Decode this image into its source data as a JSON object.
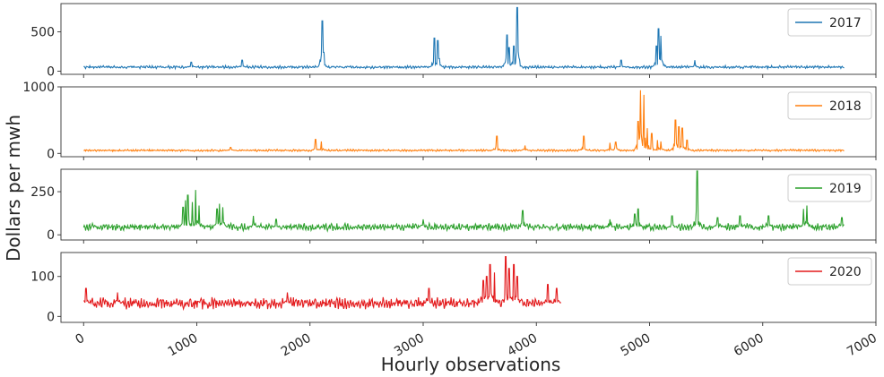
{
  "figure": {
    "xlabel": "Hourly observations",
    "ylabel": "Dollars per mwh"
  },
  "chart_data": [
    {
      "type": "line",
      "series": [
        {
          "name": "2017",
          "color": "#1f77b4",
          "n": 6720,
          "base": 52,
          "noise": 14,
          "peaks": [
            [
              950,
              115
            ],
            [
              1400,
              140
            ],
            [
              2110,
              640
            ],
            [
              2120,
              240
            ],
            [
              3100,
              420
            ],
            [
              3130,
              390
            ],
            [
              3140,
              160
            ],
            [
              3740,
              460
            ],
            [
              3760,
              300
            ],
            [
              3800,
              320
            ],
            [
              3830,
              810
            ],
            [
              3840,
              250
            ],
            [
              4750,
              140
            ],
            [
              5060,
              320
            ],
            [
              5080,
              540
            ],
            [
              5100,
              450
            ],
            [
              5400,
              140
            ]
          ]
        }
      ],
      "legend": "2017",
      "x_ticks": [
        0,
        1000,
        2000,
        3000,
        4000,
        5000,
        6000,
        7000
      ],
      "y_ticks": [
        0,
        500
      ],
      "ylim": [
        -40,
        860
      ],
      "xlim": [
        -200,
        7000
      ],
      "legend_position": "top-right"
    },
    {
      "type": "line",
      "series": [
        {
          "name": "2018",
          "color": "#ff7f0e",
          "n": 6720,
          "base": 45,
          "noise": 12,
          "peaks": [
            [
              1300,
              90
            ],
            [
              2050,
              210
            ],
            [
              2100,
              180
            ],
            [
              3650,
              260
            ],
            [
              3900,
              120
            ],
            [
              4420,
              260
            ],
            [
              4650,
              160
            ],
            [
              4700,
              170
            ],
            [
              4900,
              480
            ],
            [
              4920,
              950
            ],
            [
              4950,
              880
            ],
            [
              4980,
              380
            ],
            [
              5020,
              300
            ],
            [
              5070,
              200
            ],
            [
              5100,
              180
            ],
            [
              5230,
              500
            ],
            [
              5260,
              400
            ],
            [
              5290,
              380
            ],
            [
              5330,
              200
            ]
          ]
        }
      ],
      "legend": "2018",
      "x_ticks": [
        0,
        1000,
        2000,
        3000,
        4000,
        5000,
        6000,
        7000
      ],
      "y_ticks": [
        0,
        1000
      ],
      "ylim": [
        -50,
        1000
      ],
      "xlim": [
        -200,
        7000
      ],
      "legend_position": "top-right"
    },
    {
      "type": "line",
      "series": [
        {
          "name": "2019",
          "color": "#2ca02c",
          "n": 6720,
          "base": 45,
          "noise": 16,
          "peaks": [
            [
              880,
              160
            ],
            [
              900,
              200
            ],
            [
              920,
              230
            ],
            [
              960,
              190
            ],
            [
              990,
              260
            ],
            [
              1020,
              170
            ],
            [
              1180,
              150
            ],
            [
              1200,
              180
            ],
            [
              1230,
              160
            ],
            [
              1500,
              110
            ],
            [
              1700,
              90
            ],
            [
              3000,
              90
            ],
            [
              3880,
              140
            ],
            [
              4650,
              90
            ],
            [
              4870,
              120
            ],
            [
              4900,
              150
            ],
            [
              5200,
              110
            ],
            [
              5420,
              370
            ],
            [
              5600,
              100
            ],
            [
              5800,
              110
            ],
            [
              6050,
              110
            ],
            [
              6360,
              150
            ],
            [
              6390,
              170
            ],
            [
              6700,
              100
            ]
          ]
        }
      ],
      "legend": "2019",
      "x_ticks": [
        0,
        1000,
        2000,
        3000,
        4000,
        5000,
        6000,
        7000
      ],
      "y_ticks": [
        0,
        250
      ],
      "ylim": [
        -30,
        380
      ],
      "xlim": [
        -200,
        7000
      ],
      "legend_position": "top-right"
    },
    {
      "type": "line",
      "series": [
        {
          "name": "2020",
          "color": "#e31a1c",
          "n": 4220,
          "base": 33,
          "noise": 11,
          "peaks": [
            [
              20,
              70
            ],
            [
              300,
              60
            ],
            [
              1800,
              60
            ],
            [
              3050,
              70
            ],
            [
              3530,
              90
            ],
            [
              3560,
              100
            ],
            [
              3590,
              130
            ],
            [
              3630,
              110
            ],
            [
              3730,
              150
            ],
            [
              3760,
              120
            ],
            [
              3800,
              130
            ],
            [
              3830,
              100
            ],
            [
              4100,
              80
            ],
            [
              4180,
              70
            ]
          ]
        }
      ],
      "legend": "2020",
      "x_ticks": [
        0,
        1000,
        2000,
        3000,
        4000,
        5000,
        6000,
        7000
      ],
      "y_ticks": [
        0,
        100
      ],
      "ylim": [
        -15,
        160
      ],
      "xlim": [
        -200,
        7000
      ],
      "legend_position": "top-right"
    }
  ]
}
